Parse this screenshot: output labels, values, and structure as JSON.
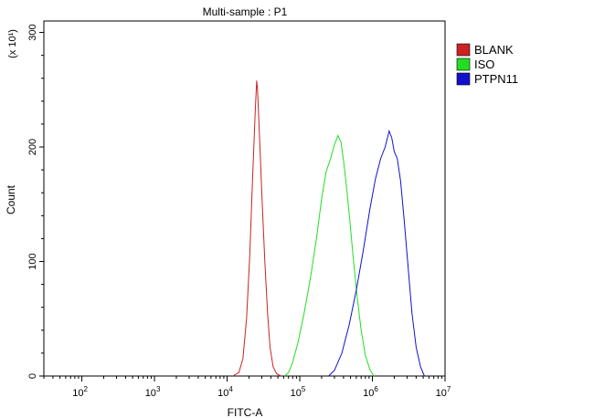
{
  "chart_data": {
    "type": "line",
    "title": "Multi-sample : P1",
    "xlabel": "FITC-A",
    "ylabel": "Count",
    "y_scale_note": "(x 10¹)",
    "x_scale": "log",
    "xlim": [
      30,
      10000000
    ],
    "ylim": [
      0,
      310
    ],
    "x_ticks": [
      {
        "value": 100,
        "base": "10",
        "exp": "2"
      },
      {
        "value": 1000,
        "base": "10",
        "exp": "3"
      },
      {
        "value": 10000,
        "base": "10",
        "exp": "4"
      },
      {
        "value": 100000,
        "base": "10",
        "exp": "5"
      },
      {
        "value": 1000000,
        "base": "10",
        "exp": "6"
      },
      {
        "value": 10000000,
        "base": "10",
        "exp": "7"
      }
    ],
    "y_ticks": [
      0,
      100,
      200,
      300
    ],
    "legend_position": "right",
    "series": [
      {
        "name": "BLANK",
        "color": "#cc2222",
        "points": [
          [
            12000,
            0
          ],
          [
            14500,
            3
          ],
          [
            16500,
            15
          ],
          [
            18500,
            50
          ],
          [
            20500,
            105
          ],
          [
            22000,
            160
          ],
          [
            23500,
            205
          ],
          [
            24500,
            235
          ],
          [
            25500,
            258
          ],
          [
            26200,
            250
          ],
          [
            27000,
            232
          ],
          [
            28500,
            195
          ],
          [
            30500,
            150
          ],
          [
            33000,
            100
          ],
          [
            36000,
            55
          ],
          [
            39000,
            25
          ],
          [
            43000,
            8
          ],
          [
            48000,
            2
          ],
          [
            55000,
            0
          ]
        ]
      },
      {
        "name": "ISO",
        "color": "#22dd22",
        "points": [
          [
            62000,
            0
          ],
          [
            70000,
            3
          ],
          [
            80000,
            12
          ],
          [
            95000,
            30
          ],
          [
            115000,
            55
          ],
          [
            140000,
            85
          ],
          [
            170000,
            120
          ],
          [
            200000,
            155
          ],
          [
            230000,
            178
          ],
          [
            265000,
            190
          ],
          [
            300000,
            202
          ],
          [
            335000,
            210
          ],
          [
            370000,
            204
          ],
          [
            400000,
            188
          ],
          [
            440000,
            165
          ],
          [
            490000,
            135
          ],
          [
            550000,
            100
          ],
          [
            620000,
            68
          ],
          [
            700000,
            40
          ],
          [
            800000,
            18
          ],
          [
            930000,
            5
          ],
          [
            1050000,
            0
          ]
        ]
      },
      {
        "name": "PTPN11",
        "color": "#1111cc",
        "points": [
          [
            250000,
            0
          ],
          [
            300000,
            5
          ],
          [
            380000,
            20
          ],
          [
            480000,
            45
          ],
          [
            600000,
            75
          ],
          [
            750000,
            110
          ],
          [
            920000,
            145
          ],
          [
            1100000,
            172
          ],
          [
            1300000,
            190
          ],
          [
            1500000,
            200
          ],
          [
            1700000,
            214
          ],
          [
            1850000,
            208
          ],
          [
            2000000,
            196
          ],
          [
            2200000,
            190
          ],
          [
            2450000,
            170
          ],
          [
            2750000,
            135
          ],
          [
            3100000,
            95
          ],
          [
            3500000,
            55
          ],
          [
            4000000,
            25
          ],
          [
            4600000,
            8
          ],
          [
            5200000,
            0
          ]
        ]
      }
    ]
  }
}
